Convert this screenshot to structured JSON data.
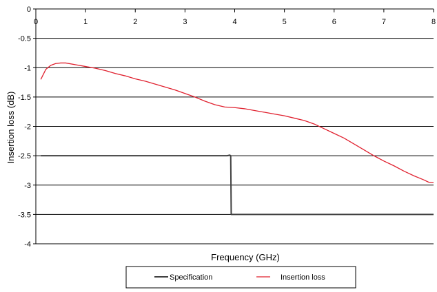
{
  "chart_data": {
    "type": "line",
    "title": "",
    "xlabel": "Frequency (GHz)",
    "ylabel": "Insertion loss (dB)",
    "xlim": [
      0,
      8
    ],
    "ylim": [
      -4,
      0
    ],
    "x_ticks": [
      "0",
      "1",
      "2",
      "3",
      "4",
      "5",
      "6",
      "7",
      "8"
    ],
    "y_ticks": [
      "0",
      "-0.5",
      "-1",
      "-1.5",
      "-2",
      "-2.5",
      "-3",
      "-3.5",
      "-4"
    ],
    "x_tick_values": [
      0,
      1,
      2,
      3,
      4,
      5,
      6,
      7,
      8
    ],
    "y_tick_values": [
      0,
      -0.5,
      -1,
      -1.5,
      -2,
      -2.5,
      -3,
      -3.5,
      -4
    ],
    "grid": "horizontal",
    "legend_position": "bottom",
    "series": [
      {
        "name": "Specification",
        "color": "#404040",
        "x": [
          0.1,
          3.85,
          3.9,
          3.92,
          3.93,
          4.1,
          8.0
        ],
        "y": [
          -2.5,
          -2.5,
          -2.49,
          -2.5,
          -3.5,
          -3.5,
          -3.5
        ]
      },
      {
        "name": "Insertion loss",
        "color": "#e0202e",
        "x": [
          0.1,
          0.2,
          0.3,
          0.4,
          0.5,
          0.6,
          0.8,
          1.0,
          1.2,
          1.4,
          1.6,
          1.8,
          2.0,
          2.2,
          2.4,
          2.6,
          2.8,
          3.0,
          3.2,
          3.4,
          3.6,
          3.8,
          4.0,
          4.2,
          4.4,
          4.6,
          4.8,
          5.0,
          5.2,
          5.4,
          5.6,
          5.8,
          6.0,
          6.2,
          6.4,
          6.6,
          6.8,
          7.0,
          7.2,
          7.4,
          7.6,
          7.8,
          7.9,
          8.0
        ],
        "y": [
          -1.2,
          -1.03,
          -0.96,
          -0.93,
          -0.92,
          -0.92,
          -0.95,
          -0.98,
          -1.01,
          -1.05,
          -1.1,
          -1.14,
          -1.19,
          -1.23,
          -1.28,
          -1.33,
          -1.38,
          -1.44,
          -1.5,
          -1.57,
          -1.63,
          -1.67,
          -1.68,
          -1.7,
          -1.73,
          -1.76,
          -1.79,
          -1.82,
          -1.86,
          -1.9,
          -1.96,
          -2.04,
          -2.12,
          -2.2,
          -2.3,
          -2.4,
          -2.5,
          -2.59,
          -2.67,
          -2.76,
          -2.84,
          -2.91,
          -2.95,
          -2.96
        ]
      }
    ]
  }
}
